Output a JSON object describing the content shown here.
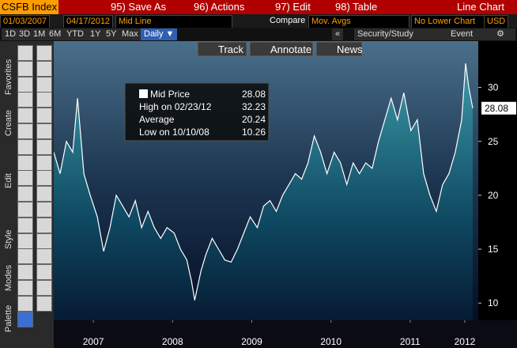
{
  "toolbar": {
    "security": "CSFB Index",
    "menu": [
      "95) Save As",
      "96) Actions",
      "97) Edit",
      "98) Table"
    ],
    "chart_kind": "Line Chart"
  },
  "controls": {
    "start_date": "01/03/2007",
    "end_date": "04/17/2012",
    "line_type": "Mid Line",
    "compare": "Compare",
    "mov_avgs": "Mov. Avgs",
    "lower_chart": "No Lower Chart",
    "currency": "USD"
  },
  "periods": [
    "1D",
    "3D",
    "1M",
    "6M",
    "YTD",
    "1Y",
    "5Y",
    "Max",
    "Daily ▼"
  ],
  "study_bar": {
    "collapse": "«",
    "study": "Security/Study",
    "event": "Event",
    "settings": "⚙"
  },
  "chart_buttons": [
    "Track",
    "Annotate",
    "News"
  ],
  "sidebar": [
    "Favorites",
    "Create",
    "Edit",
    "Style",
    "Modes",
    "Palette"
  ],
  "chart_data": {
    "type": "line",
    "color": "#ffffff",
    "x": [
      2007.0,
      2007.08,
      2007.16,
      2007.24,
      2007.3,
      2007.38,
      2007.46,
      2007.55,
      2007.63,
      2007.71,
      2007.79,
      2007.87,
      2007.95,
      2008.03,
      2008.11,
      2008.19,
      2008.27,
      2008.35,
      2008.43,
      2008.52,
      2008.6,
      2008.68,
      2008.74,
      2008.78,
      2008.86,
      2008.92,
      2009.0,
      2009.08,
      2009.16,
      2009.24,
      2009.32,
      2009.4,
      2009.48,
      2009.57,
      2009.65,
      2009.73,
      2009.81,
      2009.89,
      2009.97,
      2010.05,
      2010.13,
      2010.21,
      2010.29,
      2010.37,
      2010.45,
      2010.54,
      2010.62,
      2010.7,
      2010.78,
      2010.86,
      2010.94,
      2011.02,
      2011.1,
      2011.18,
      2011.26,
      2011.34,
      2011.42,
      2011.51,
      2011.59,
      2011.67,
      2011.75,
      2011.83,
      2011.91,
      2011.99,
      2012.07,
      2012.15,
      2012.2,
      2012.24,
      2012.29
    ],
    "series": [
      {
        "name": "Mid Price",
        "color": "#ffffff",
        "values": [
          24,
          22,
          25,
          24,
          29,
          22,
          20,
          18,
          14.8,
          17,
          20,
          19,
          18,
          19.5,
          17,
          18.5,
          17,
          16,
          17,
          16.5,
          15,
          14,
          12,
          10.26,
          13,
          14.5,
          16,
          15,
          14,
          13.8,
          15,
          16.5,
          18,
          17,
          19,
          19.5,
          18.5,
          20,
          21,
          22,
          21.5,
          23,
          25.5,
          24,
          22,
          24,
          23,
          21,
          23,
          22,
          23,
          22.5,
          25,
          27,
          29,
          27,
          29.5,
          26,
          27,
          22,
          20,
          18.5,
          21,
          22,
          24,
          27,
          32.23,
          30,
          28.08
        ]
      }
    ],
    "xlim": [
      2007.0,
      2012.36
    ],
    "ylim": [
      8.4,
      34.3
    ],
    "xticks": [
      {
        "value": 2007.5,
        "label": "2007"
      },
      {
        "value": 2008.5,
        "label": "2008"
      },
      {
        "value": 2009.5,
        "label": "2009"
      },
      {
        "value": 2010.5,
        "label": "2010"
      },
      {
        "value": 2011.5,
        "label": "2011"
      },
      {
        "value": 2012.19,
        "label": "2012"
      }
    ],
    "yticks": [
      10,
      15,
      20,
      25,
      30
    ],
    "stats": [
      {
        "label": "Mid Price",
        "value": 28.08
      },
      {
        "label": "High on 02/23/12",
        "value": 32.23
      },
      {
        "label": "Average",
        "value": 20.24
      },
      {
        "label": "Low on 10/10/08",
        "value": 10.26
      }
    ]
  }
}
